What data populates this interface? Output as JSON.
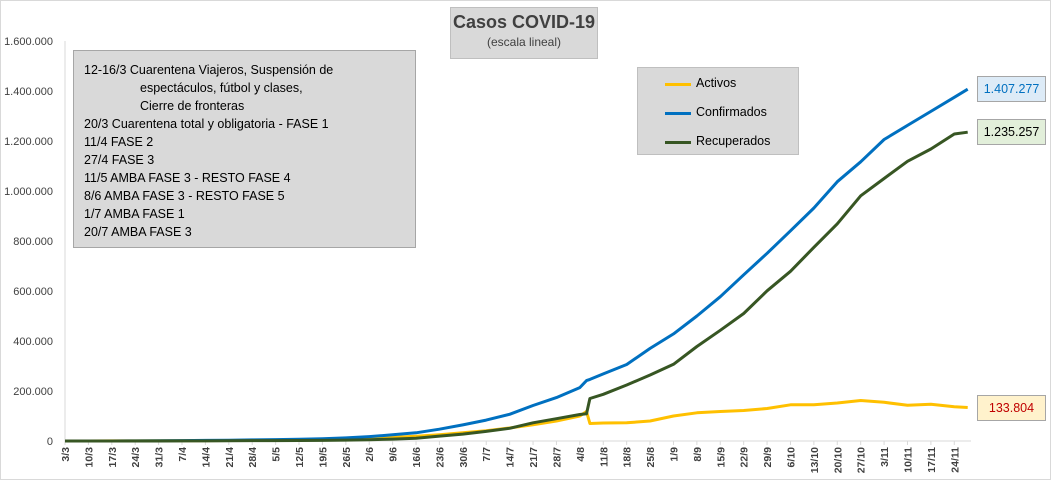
{
  "chart_data": {
    "type": "line",
    "title": "Casos COVID-19",
    "subtitle": "(escala lineal)",
    "xlabel": "",
    "ylabel": "",
    "ylim": [
      0,
      1600000
    ],
    "yticks": [
      "0",
      "200.000",
      "400.000",
      "600.000",
      "800.000",
      "1.000.000",
      "1.200.000",
      "1.400.000",
      "1.600.000"
    ],
    "grid": false,
    "legend_position": "top-right",
    "x_tick_labels": [
      "3/3",
      "10/3",
      "17/3",
      "24/3",
      "31/3",
      "7/4",
      "14/4",
      "21/4",
      "28/4",
      "5/5",
      "12/5",
      "19/5",
      "26/5",
      "2/6",
      "9/6",
      "16/6",
      "23/6",
      "30/6",
      "7/7",
      "14/7",
      "21/7",
      "28/7",
      "4/8",
      "11/8",
      "18/8",
      "25/8",
      "1/9",
      "8/9",
      "15/9",
      "22/9",
      "29/9",
      "6/10",
      "13/10",
      "20/10",
      "27/10",
      "3/11",
      "10/11",
      "17/11",
      "24/11"
    ],
    "x": [
      "3/3",
      "10/3",
      "17/3",
      "24/3",
      "31/3",
      "7/4",
      "14/4",
      "21/4",
      "28/4",
      "5/5",
      "12/5",
      "19/5",
      "26/5",
      "2/6",
      "9/6",
      "16/6",
      "23/6",
      "30/6",
      "7/7",
      "14/7",
      "21/7",
      "28/7",
      "4/8",
      "6/8",
      "7/8",
      "11/8",
      "18/8",
      "25/8",
      "1/9",
      "8/9",
      "15/9",
      "22/9",
      "29/9",
      "6/10",
      "13/10",
      "20/10",
      "27/10",
      "3/11",
      "10/11",
      "17/11",
      "24/11",
      "28/11"
    ],
    "series": [
      {
        "name": "Activos",
        "color": "#ffc000",
        "values": [
          0,
          0,
          200,
          400,
          800,
          1200,
          1600,
          2000,
          2600,
          3500,
          4500,
          6000,
          8500,
          11000,
          14500,
          19000,
          25000,
          33000,
          41000,
          52000,
          65000,
          80000,
          100000,
          118000,
          70000,
          72000,
          73000,
          80000,
          100000,
          113000,
          118000,
          122000,
          130000,
          145000,
          145000,
          152000,
          162000,
          155000,
          143000,
          147000,
          137000,
          133804
        ]
      },
      {
        "name": "Confirmados",
        "color": "#0070c0",
        "values": [
          0,
          20,
          100,
          300,
          1000,
          1600,
          2400,
          3300,
          4300,
          5400,
          6900,
          8800,
          12600,
          17400,
          24800,
          32800,
          47200,
          64500,
          83400,
          106900,
          141900,
          173400,
          213500,
          241800,
          246500,
          268600,
          305900,
          370200,
          428200,
          500000,
          577200,
          664800,
          751000,
          840900,
          931900,
          1037300,
          1116600,
          1205900,
          1262400,
          1318300,
          1374600,
          1407277
        ]
      },
      {
        "name": "Recuperados",
        "color": "#375623",
        "values": [
          0,
          0,
          0,
          0,
          100,
          300,
          600,
          1100,
          1500,
          1700,
          2100,
          2600,
          3800,
          5300,
          7800,
          11000,
          19700,
          27800,
          38600,
          51000,
          72900,
          89200,
          106000,
          109000,
          170000,
          187000,
          224000,
          264000,
          307000,
          378000,
          443000,
          510000,
          601000,
          679000,
          775000,
          869000,
          981000,
          1050000,
          1119000,
          1168000,
          1228000,
          1235257
        ]
      }
    ],
    "callouts": [
      {
        "series": "Confirmados",
        "label": "1.407.277",
        "color": "#0070c0",
        "bg": "#ddebf7"
      },
      {
        "series": "Recuperados",
        "label": "1.235.257",
        "color": "#000000",
        "bg": "#e2efda"
      },
      {
        "series": "Activos",
        "label": "133.804",
        "color": "#c00000",
        "bg": "#fff2cc"
      }
    ]
  },
  "notes": [
    {
      "text": "12-16/3  Cuarentena Viajeros, Suspensión de",
      "indent": false
    },
    {
      "text": "espectáculos, fútbol y clases,",
      "indent": true
    },
    {
      "text": "Cierre de fronteras",
      "indent": true
    },
    {
      "text": "20/3  Cuarentena total y obligatoria - FASE 1",
      "indent": false
    },
    {
      "text": "11/4  FASE 2",
      "indent": false
    },
    {
      "text": "27/4  FASE 3",
      "indent": false
    },
    {
      "text": "11/5  AMBA FASE 3 - RESTO FASE 4",
      "indent": false
    },
    {
      "text": "8/6  AMBA FASE 3 - RESTO FASE 5",
      "indent": false
    },
    {
      "text": "1/7  AMBA FASE 1",
      "indent": false
    },
    {
      "text": "20/7  AMBA FASE 3",
      "indent": false
    }
  ]
}
